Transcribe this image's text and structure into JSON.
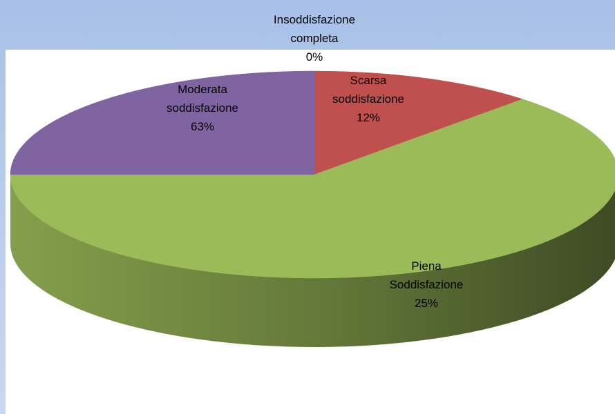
{
  "chart_data": {
    "type": "pie3d",
    "categories": [
      "Insoddisfazione completa",
      "Scarsa soddisfazione",
      "Moderata soddisfazione",
      "Piena Soddisfazione"
    ],
    "values": [
      0,
      12,
      63,
      25
    ],
    "value_labels": [
      "0%",
      "12%",
      "63%",
      "25%"
    ],
    "colors": [
      "#4f81bd",
      "#c0504d",
      "#9bbb59",
      "#8064a2"
    ]
  }
}
